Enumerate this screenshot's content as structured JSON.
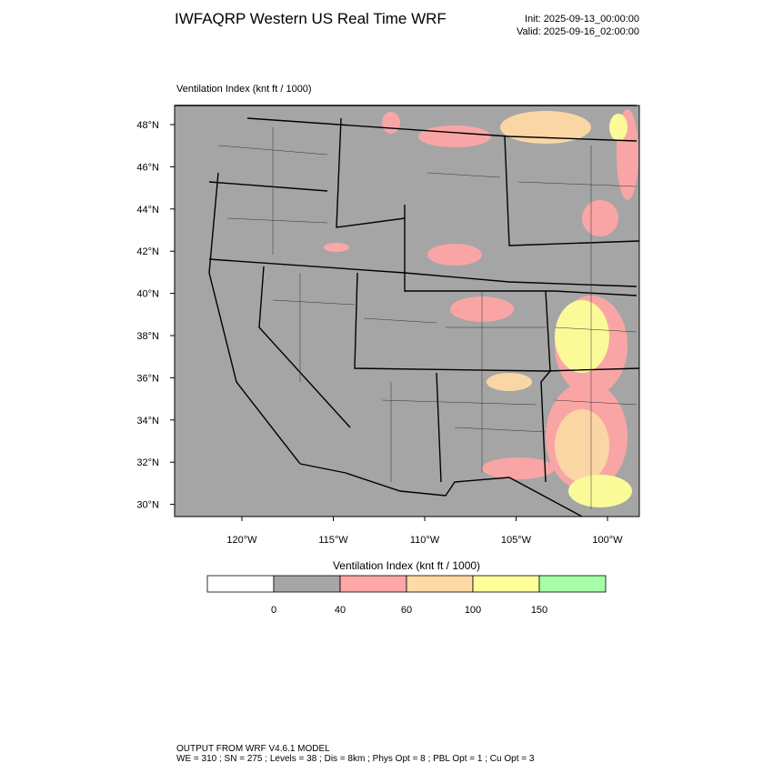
{
  "header": {
    "title": "IWFAQRP Western US Real Time WRF",
    "init": "Init: 2025-09-13_00:00:00",
    "valid": "Valid: 2025-09-16_02:00:00"
  },
  "map": {
    "field_label": "Ventilation Index   (knt ft / 1000)",
    "lat_labels": [
      "48°N",
      "46°N",
      "44°N",
      "42°N",
      "40°N",
      "38°N",
      "36°N",
      "34°N",
      "32°N",
      "30°N"
    ],
    "lon_labels": [
      "120°W",
      "115°W",
      "110°W",
      "105°W",
      "100°W"
    ]
  },
  "colorbar": {
    "title": "Ventilation Index   (knt ft / 1000)",
    "labels": [
      "0",
      "40",
      "60",
      "100",
      "150"
    ],
    "colors": [
      "#ffffff",
      "#a6a6a6",
      "#ffa6a6",
      "#ffd9a6",
      "#ffff99",
      "#a6ffa6"
    ]
  },
  "footer": {
    "model": "OUTPUT FROM WRF V4.6.1 MODEL",
    "settings": "WE = 310 ; SN = 275 ; Levels = 38 ; Dis = 8km ; Phys Opt = 8 ; PBL Opt = 1 ; Cu Opt = 3"
  }
}
